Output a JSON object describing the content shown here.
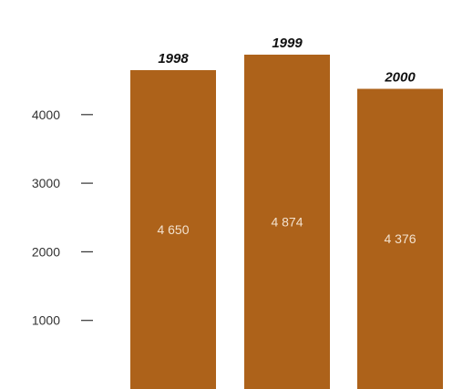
{
  "chart_data": {
    "type": "bar",
    "categories": [
      "1998",
      "1999",
      "2000"
    ],
    "values": [
      4650,
      4874,
      4376
    ],
    "value_labels": [
      "4 650",
      "4 874",
      "4 376"
    ],
    "y_ticks": [
      1000,
      2000,
      3000,
      4000
    ],
    "y_tick_labels": [
      "1000",
      "2000",
      "3000",
      "4000"
    ],
    "ylim": [
      0,
      5000
    ],
    "grid": false,
    "legend": "none",
    "bar_color": "#ad621a",
    "title": "",
    "xlabel": "",
    "ylabel": ""
  }
}
